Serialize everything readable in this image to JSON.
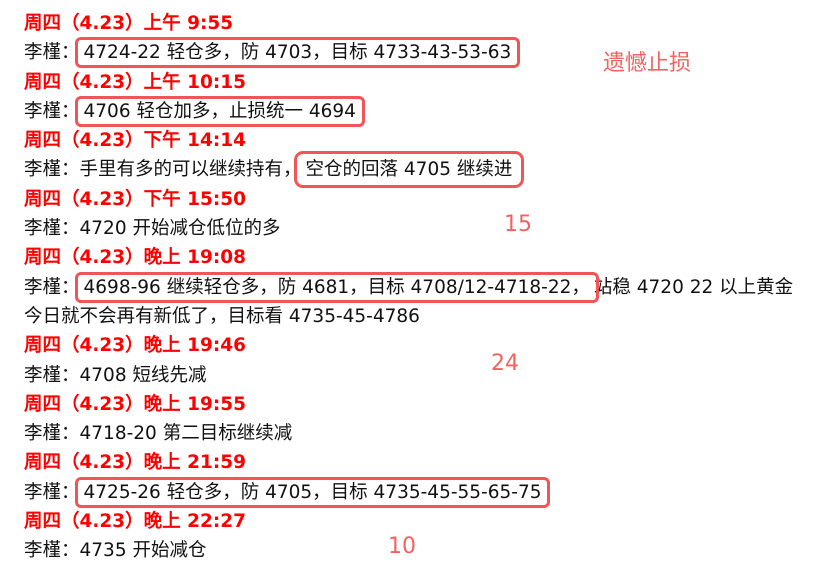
{
  "speaker": "李槿：",
  "entries": [
    {
      "heading": "周四（4.23）上午 9:55",
      "pre": "",
      "boxed": "4724-22 轻仓多，防 4703，目标 4733-43-53-63",
      "post": ""
    },
    {
      "heading": "周四（4.23）上午 10:15",
      "pre": "",
      "boxed": "4706 轻仓加多，止损统一 4694 ",
      "post": ""
    },
    {
      "heading": "周四（4.23）下午 14:14",
      "pre": "手里有多的可以继续持有，",
      "boxed": "空仓的回落 4705 继续进",
      "post": ""
    },
    {
      "heading": "周四（4.23）下午 15:50",
      "pre": "4720 开始减仓低位的多",
      "boxed": "",
      "post": ""
    },
    {
      "heading": "周四（4.23）晚上 19:08",
      "pre": "",
      "boxed": "4698-96 继续轻仓多，防 4681，目标 4708/12-4718-22，",
      "post": "站稳 4720 22 以上黄金今日就不会再有新低了，目标看 4735-45-4786"
    },
    {
      "heading": "周四（4.23）晚上 19:46",
      "pre": "4708 短线先减",
      "boxed": "",
      "post": ""
    },
    {
      "heading": "周四（4.23）晚上 19:55",
      "pre": "4718-20 第二目标继续减",
      "boxed": "",
      "post": ""
    },
    {
      "heading": "周四（4.23）晚上 21:59",
      "pre": "",
      "boxed": "4725-26 轻仓多，防 4705，目标 4735-45-55-65-75",
      "post": ""
    },
    {
      "heading": "周四（4.23）晚上 22:27",
      "pre": "4735 开始减仓",
      "boxed": "",
      "post": ""
    }
  ],
  "annotations": {
    "stop_loss": "遗憾止损",
    "n1": "15",
    "n2": "24",
    "n3": "10"
  },
  "colors": {
    "heading": "#ff0000",
    "box": "#f25555",
    "annotation": "#f26262"
  }
}
